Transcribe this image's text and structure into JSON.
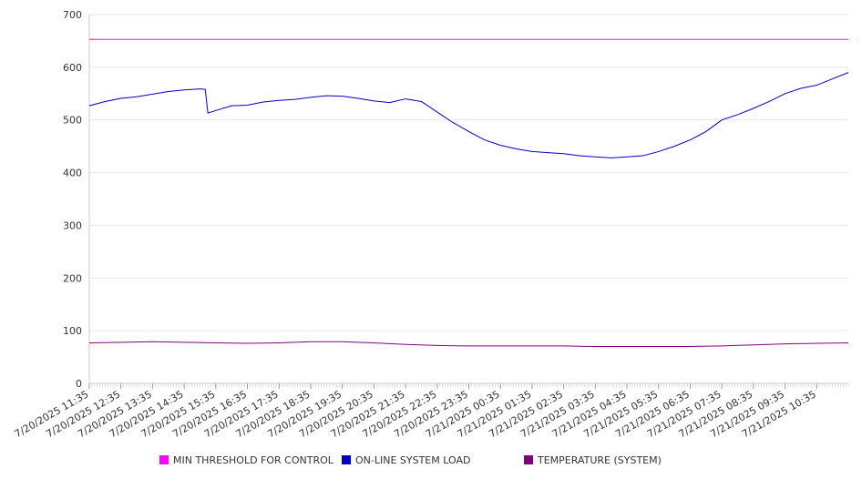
{
  "chart_data": {
    "type": "line",
    "title": "",
    "xlabel": "",
    "ylabel": "",
    "ylim": [
      0,
      700
    ],
    "yticks": [
      0,
      100,
      200,
      300,
      400,
      500,
      600,
      700
    ],
    "grid": true,
    "legend_position": "bottom",
    "x_start": "7/20/2025 11:35",
    "x_end": "7/21/2025 11:35",
    "x_tick_labels": [
      "7/20/2025 11:35",
      "7/20/2025 12:35",
      "7/20/2025 13:35",
      "7/20/2025 14:35",
      "7/20/2025 15:35",
      "7/20/2025 16:35",
      "7/20/2025 17:35",
      "7/20/2025 18:35",
      "7/20/2025 19:35",
      "7/20/2025 20:35",
      "7/20/2025 21:35",
      "7/20/2025 22:35",
      "7/20/2025 23:35",
      "7/21/2025 00:35",
      "7/21/2025 01:35",
      "7/21/2025 02:35",
      "7/21/2025 03:35",
      "7/21/2025 04:35",
      "7/21/2025 05:35",
      "7/21/2025 06:35",
      "7/21/2025 07:35",
      "7/21/2025 08:35",
      "7/21/2025 09:35",
      "7/21/2025 10:35"
    ],
    "series": [
      {
        "name": "MIN THRESHOLD FOR CONTROL",
        "color": "#ff00ff",
        "points": [
          [
            "7/20/2025 11:35",
            653
          ],
          [
            "7/21/2025 11:35",
            653
          ]
        ]
      },
      {
        "name": "ON-LINE SYSTEM LOAD",
        "color": "#0000cc",
        "points": [
          [
            "7/20/2025 11:35",
            527
          ],
          [
            "7/20/2025 12:05",
            535
          ],
          [
            "7/20/2025 12:35",
            541
          ],
          [
            "7/20/2025 13:05",
            544
          ],
          [
            "7/20/2025 13:35",
            549
          ],
          [
            "7/20/2025 14:05",
            554
          ],
          [
            "7/20/2025 14:35",
            557
          ],
          [
            "7/20/2025 15:05",
            559
          ],
          [
            "7/20/2025 15:15",
            558
          ],
          [
            "7/20/2025 15:20",
            513
          ],
          [
            "7/20/2025 15:35",
            518
          ],
          [
            "7/20/2025 16:05",
            527
          ],
          [
            "7/20/2025 16:35",
            528
          ],
          [
            "7/20/2025 17:05",
            534
          ],
          [
            "7/20/2025 17:35",
            537
          ],
          [
            "7/20/2025 18:05",
            539
          ],
          [
            "7/20/2025 18:35",
            543
          ],
          [
            "7/20/2025 19:05",
            546
          ],
          [
            "7/20/2025 19:35",
            545
          ],
          [
            "7/20/2025 20:05",
            541
          ],
          [
            "7/20/2025 20:35",
            536
          ],
          [
            "7/20/2025 21:05",
            533
          ],
          [
            "7/20/2025 21:35",
            540
          ],
          [
            "7/20/2025 22:05",
            535
          ],
          [
            "7/20/2025 22:35",
            515
          ],
          [
            "7/20/2025 23:05",
            495
          ],
          [
            "7/20/2025 23:35",
            478
          ],
          [
            "7/21/2025 00:05",
            462
          ],
          [
            "7/21/2025 00:35",
            452
          ],
          [
            "7/21/2025 01:05",
            445
          ],
          [
            "7/21/2025 01:35",
            440
          ],
          [
            "7/21/2025 02:05",
            438
          ],
          [
            "7/21/2025 02:35",
            436
          ],
          [
            "7/21/2025 03:05",
            432
          ],
          [
            "7/21/2025 03:35",
            430
          ],
          [
            "7/21/2025 04:05",
            428
          ],
          [
            "7/21/2025 04:35",
            430
          ],
          [
            "7/21/2025 05:05",
            432
          ],
          [
            "7/21/2025 05:35",
            440
          ],
          [
            "7/21/2025 06:05",
            450
          ],
          [
            "7/21/2025 06:35",
            462
          ],
          [
            "7/21/2025 07:05",
            478
          ],
          [
            "7/21/2025 07:35",
            500
          ],
          [
            "7/21/2025 08:05",
            510
          ],
          [
            "7/21/2025 08:35",
            522
          ],
          [
            "7/21/2025 09:05",
            535
          ],
          [
            "7/21/2025 09:35",
            550
          ],
          [
            "7/21/2025 10:05",
            560
          ],
          [
            "7/21/2025 10:35",
            566
          ],
          [
            "7/21/2025 11:05",
            578
          ],
          [
            "7/21/2025 11:35",
            590
          ]
        ]
      },
      {
        "name": "TEMPERATURE (SYSTEM)",
        "color": "#800080",
        "points": [
          [
            "7/20/2025 11:35",
            77
          ],
          [
            "7/20/2025 12:35",
            78
          ],
          [
            "7/20/2025 13:35",
            79
          ],
          [
            "7/20/2025 14:35",
            78
          ],
          [
            "7/20/2025 15:35",
            77
          ],
          [
            "7/20/2025 16:35",
            76
          ],
          [
            "7/20/2025 17:35",
            77
          ],
          [
            "7/20/2025 18:35",
            79
          ],
          [
            "7/20/2025 19:35",
            79
          ],
          [
            "7/20/2025 20:35",
            77
          ],
          [
            "7/20/2025 21:35",
            74
          ],
          [
            "7/20/2025 22:35",
            72
          ],
          [
            "7/20/2025 23:35",
            71
          ],
          [
            "7/21/2025 00:35",
            71
          ],
          [
            "7/21/2025 01:35",
            71
          ],
          [
            "7/21/2025 02:35",
            71
          ],
          [
            "7/21/2025 03:35",
            70
          ],
          [
            "7/21/2025 04:35",
            70
          ],
          [
            "7/21/2025 05:35",
            70
          ],
          [
            "7/21/2025 06:35",
            70
          ],
          [
            "7/21/2025 07:35",
            71
          ],
          [
            "7/21/2025 08:35",
            73
          ],
          [
            "7/21/2025 09:35",
            75
          ],
          [
            "7/21/2025 10:35",
            76
          ],
          [
            "7/21/2025 11:35",
            77
          ]
        ]
      }
    ]
  }
}
